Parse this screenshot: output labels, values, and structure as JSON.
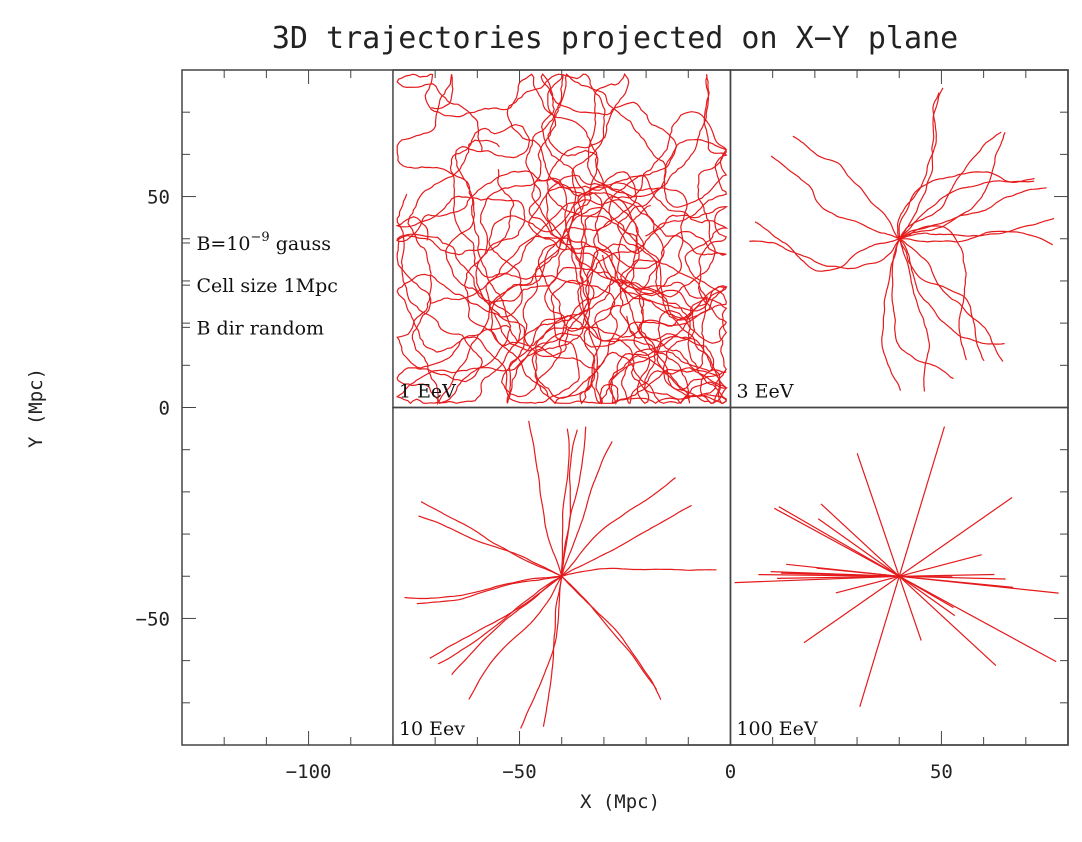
{
  "chart_data": {
    "type": "line",
    "title": "3D trajectories projected on X−Y plane",
    "xlabel": "X (Mpc)",
    "ylabel": "Y (Mpc)",
    "xlim": [
      -130,
      80
    ],
    "ylim": [
      -80,
      80
    ],
    "xticks": [
      -100,
      -50,
      0,
      50
    ],
    "yticks": [
      50,
      0,
      -50
    ],
    "xtick_labels": [
      "−100",
      "−50",
      "0",
      "50"
    ],
    "ytick_labels": [
      "50",
      "0",
      "−50"
    ],
    "grid": false,
    "legend": "none",
    "trajectory_color": "#e41a1c",
    "annotations": [
      {
        "text": "B=10",
        "sup": "−9",
        "suffix": " gauss",
        "x": -128,
        "y": 39
      },
      {
        "text": "Cell size 1Mpc",
        "x": -128,
        "y": 29
      },
      {
        "text": "B dir random",
        "x": -128,
        "y": 19
      }
    ],
    "panels": [
      {
        "label": "1 EeV",
        "center": [
          -40,
          40
        ],
        "x_range": [
          -80,
          0
        ],
        "y_range": [
          0,
          80
        ],
        "num_trajectories": 12,
        "style": "diffusive"
      },
      {
        "label": "3 EeV",
        "center": [
          40,
          40
        ],
        "x_range": [
          0,
          80
        ],
        "y_range": [
          0,
          80
        ],
        "num_trajectories": 20,
        "style": "wiggly"
      },
      {
        "label": "10 Eev",
        "center": [
          -40,
          -40
        ],
        "x_range": [
          -80,
          0
        ],
        "y_range": [
          -80,
          0
        ],
        "num_trajectories": 20,
        "style": "nearly-straight"
      },
      {
        "label": "100 EeV",
        "center": [
          40,
          -40
        ],
        "x_range": [
          0,
          80
        ],
        "y_range": [
          -80,
          0
        ],
        "num_trajectories": 14,
        "style": "straight"
      }
    ]
  }
}
